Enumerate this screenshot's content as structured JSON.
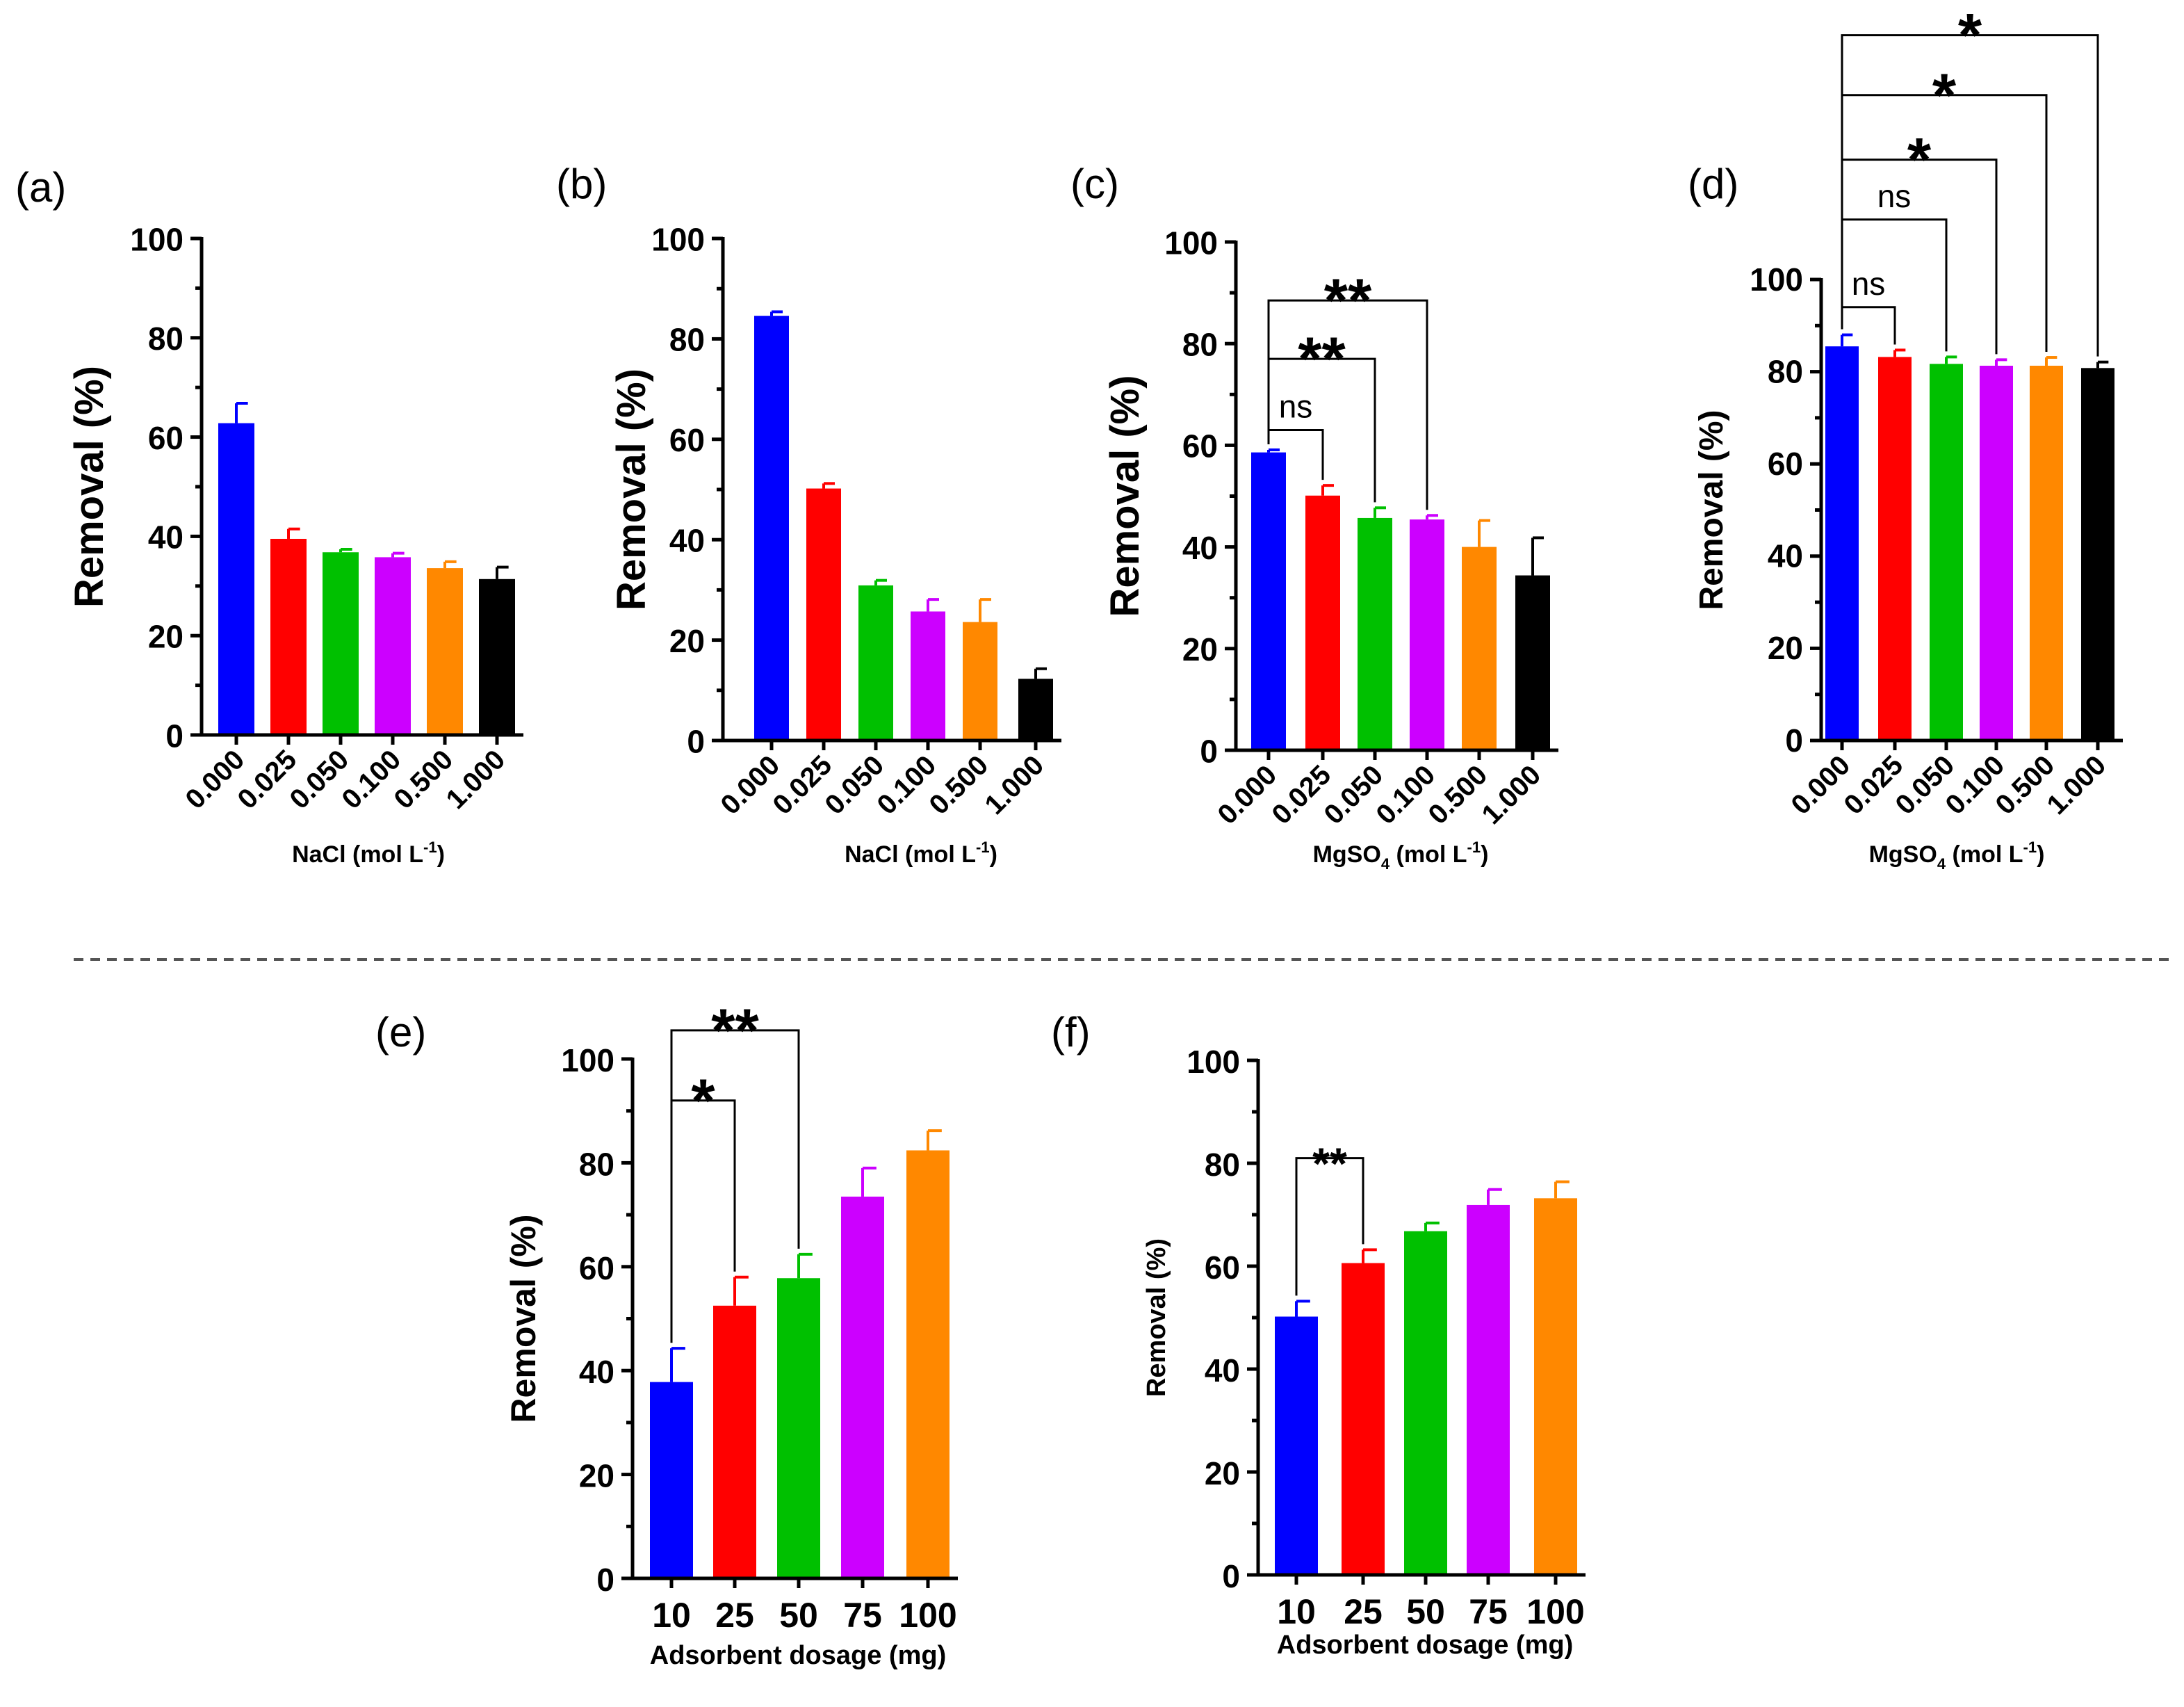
{
  "colors": {
    "blue": "#0000ff",
    "red": "#ff0000",
    "green": "#00c000",
    "purple": "#cc00ff",
    "orange": "#ff8800",
    "black": "#000000",
    "divider": "#555555"
  },
  "chart_data": [
    {
      "type": "bar",
      "panel_label": "(a)",
      "categories": [
        "0.000",
        "0.025",
        "0.050",
        "0.100",
        "0.500",
        "1.000"
      ],
      "values": [
        62.8,
        39.5,
        36.8,
        35.8,
        33.6,
        31.4
      ],
      "errors": [
        4.0,
        2.0,
        0.6,
        0.8,
        1.3,
        2.4
      ],
      "ylabel": "Removal (%)",
      "xlabel": "NaCl  (mol L-1)",
      "xlabel_main": "NaCl  (mol L",
      "xlabel_sup": "-1",
      "xlabel_tail": ")",
      "ylim": [
        0,
        100
      ],
      "yticks": [
        "0",
        "20",
        "40",
        "60",
        "80",
        "100"
      ],
      "colors": [
        "blue",
        "red",
        "green",
        "purple",
        "orange",
        "black"
      ],
      "comparisons": []
    },
    {
      "type": "bar",
      "panel_label": "(b)",
      "categories": [
        "0.000",
        "0.025",
        "0.050",
        "0.100",
        "0.500",
        "1.000"
      ],
      "values": [
        84.6,
        50.2,
        30.9,
        25.7,
        23.6,
        12.3
      ],
      "errors": [
        0.8,
        1.0,
        1.0,
        2.4,
        4.5,
        2.0
      ],
      "ylabel": "Removal (%)",
      "xlabel": "NaCl  (mol L-1)",
      "xlabel_main": "NaCl  (mol L",
      "xlabel_sup": "-1",
      "xlabel_tail": ")",
      "ylim": [
        0,
        100
      ],
      "yticks": [
        "0",
        "20",
        "40",
        "60",
        "80",
        "100"
      ],
      "colors": [
        "blue",
        "red",
        "green",
        "purple",
        "orange",
        "black"
      ],
      "comparisons": []
    },
    {
      "type": "bar",
      "panel_label": "(c)",
      "categories": [
        "0.000",
        "0.025",
        "0.050",
        "0.100",
        "0.500",
        "1.000"
      ],
      "values": [
        58.6,
        50.1,
        45.7,
        45.4,
        40.0,
        34.4
      ],
      "errors": [
        0.5,
        2.0,
        2.0,
        0.8,
        5.2,
        7.4
      ],
      "ylabel": "Removal (%)",
      "xlabel": "MgSO4  (mol L-1)",
      "xlabel_main": "MgSO",
      "xlabel_sub": "4",
      "xlabel_mid": "  (mol L",
      "xlabel_sup": "-1",
      "xlabel_tail": ")",
      "ylim": [
        0,
        100
      ],
      "yticks": [
        "0",
        "20",
        "40",
        "60",
        "80",
        "100"
      ],
      "colors": [
        "blue",
        "red",
        "green",
        "purple",
        "orange",
        "black"
      ],
      "comparisons": [
        {
          "from": 0,
          "to": 1,
          "label": "ns"
        },
        {
          "from": 0,
          "to": 2,
          "label": "**"
        },
        {
          "from": 0,
          "to": 3,
          "label": "**"
        }
      ]
    },
    {
      "type": "bar",
      "panel_label": "(d)",
      "categories": [
        "0.000",
        "0.025",
        "0.050",
        "0.100",
        "0.500",
        "1.000"
      ],
      "values": [
        85.5,
        83.2,
        81.7,
        81.3,
        81.3,
        80.8
      ],
      "errors": [
        2.5,
        1.5,
        1.5,
        1.3,
        1.8,
        1.3
      ],
      "ylabel": "Removal (%)",
      "xlabel": "MgSO4  (mol L-1)",
      "xlabel_main": "MgSO",
      "xlabel_sub": "4",
      "xlabel_mid": "  (mol L",
      "xlabel_sup": "-1",
      "xlabel_tail": ")",
      "ylim": [
        0,
        100
      ],
      "yticks": [
        "0",
        "20",
        "40",
        "60",
        "80",
        "100"
      ],
      "colors": [
        "blue",
        "red",
        "green",
        "purple",
        "orange",
        "black"
      ],
      "comparisons": [
        {
          "from": 0,
          "to": 1,
          "label": "ns"
        },
        {
          "from": 0,
          "to": 2,
          "label": "ns"
        },
        {
          "from": 0,
          "to": 3,
          "label": "*"
        },
        {
          "from": 0,
          "to": 4,
          "label": "*"
        },
        {
          "from": 0,
          "to": 5,
          "label": "*"
        }
      ]
    },
    {
      "type": "bar",
      "panel_label": "(e)",
      "categories": [
        "10",
        "25",
        "50",
        "75",
        "100"
      ],
      "values": [
        37.8,
        52.5,
        57.8,
        73.5,
        82.4
      ],
      "errors": [
        6.5,
        5.5,
        4.6,
        5.5,
        3.8
      ],
      "ylabel": "Removal (%)",
      "xlabel": "Adsorbent dosage (mg)",
      "xlabel_main": "Adsorbent dosage (mg)",
      "ylim": [
        0,
        100
      ],
      "yticks": [
        "0",
        "20",
        "40",
        "60",
        "80",
        "100"
      ],
      "colors": [
        "blue",
        "red",
        "green",
        "purple",
        "orange"
      ],
      "comparisons": [
        {
          "from": 0,
          "to": 1,
          "label": "*"
        },
        {
          "from": 0,
          "to": 2,
          "label": "**"
        }
      ]
    },
    {
      "type": "bar",
      "panel_label": "(f)",
      "categories": [
        "10",
        "25",
        "50",
        "75",
        "100"
      ],
      "values": [
        50.2,
        60.6,
        66.8,
        71.9,
        73.2
      ],
      "errors": [
        3.0,
        2.6,
        1.6,
        3.0,
        3.2
      ],
      "ylabel": "Removal (%)",
      "xlabel": "Adsorbent dosage  (mg)",
      "xlabel_main": "Adsorbent dosage  (mg)",
      "ylim": [
        0,
        100
      ],
      "yticks": [
        "0",
        "20",
        "40",
        "60",
        "80",
        "100"
      ],
      "colors": [
        "blue",
        "red",
        "green",
        "purple",
        "orange"
      ],
      "comparisons": [
        {
          "from": 0,
          "to": 1,
          "label": "**"
        }
      ]
    }
  ]
}
